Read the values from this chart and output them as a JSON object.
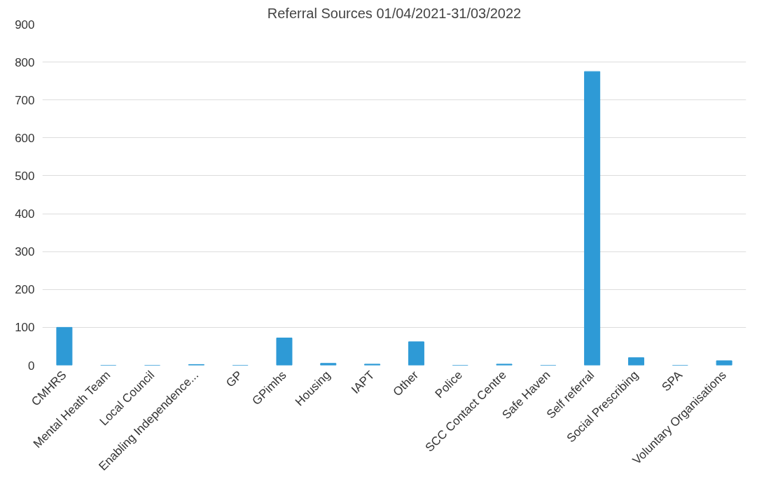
{
  "chart_data": {
    "type": "bar",
    "title": "Referral Sources 01/04/2021-31/03/2022",
    "categories": [
      "CMHRS",
      "Mental Heath Team",
      "Local Council",
      "Enabling Independence...",
      "GP",
      "GPimhs",
      "Housing",
      "IAPT",
      "Other",
      "Police",
      "SCC Contact Centre",
      "Safe Haven",
      "Self referral",
      "Social Prescribing",
      "SPA",
      "Voluntary Organisations"
    ],
    "values": [
      100,
      0,
      0,
      2,
      0,
      72,
      5,
      3,
      62,
      0,
      3,
      0,
      775,
      20,
      0,
      12
    ],
    "color": "#2e9ad6",
    "ylim": [
      0,
      900
    ],
    "yticks": [
      0,
      100,
      200,
      300,
      400,
      500,
      600,
      700,
      800,
      900
    ],
    "grid": "y"
  }
}
